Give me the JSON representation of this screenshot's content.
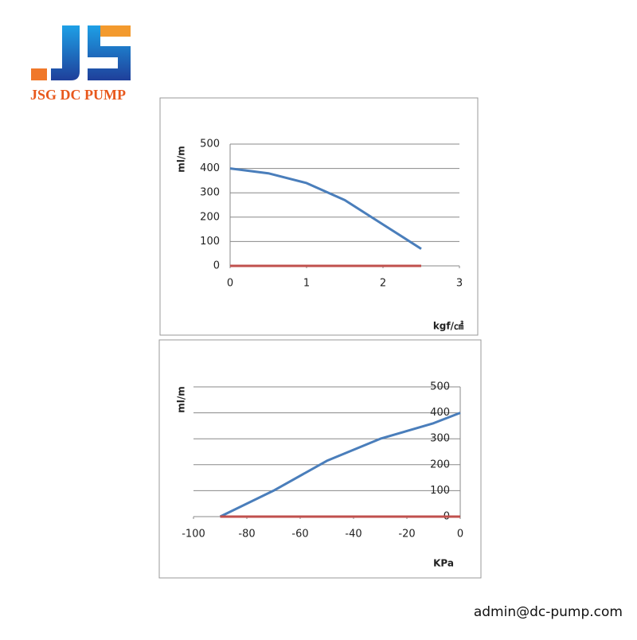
{
  "brand": "JSG DC PUMP",
  "contact": "admin@dc-pump.com",
  "chart_data": [
    {
      "type": "line",
      "ylabel": "ml/m",
      "xlabel": "kgf/㎠",
      "x": [
        0,
        0.5,
        1,
        1.5,
        2,
        2.5
      ],
      "series": [
        {
          "color": "#4a7ebb",
          "values": [
            400,
            380,
            340,
            270,
            170,
            70
          ]
        },
        {
          "color": "#c0504d",
          "values": [
            0,
            0,
            0,
            0,
            0,
            0
          ]
        }
      ],
      "xlim": [
        0,
        3
      ],
      "xticks": [
        0,
        1,
        2,
        3
      ],
      "ylim": [
        0,
        500
      ],
      "yticks": [
        0,
        100,
        200,
        300,
        400,
        500
      ],
      "grid": true
    },
    {
      "type": "line",
      "ylabel": "ml/m",
      "xlabel": "KPa",
      "x": [
        -90,
        -70,
        -50,
        -30,
        -10,
        0
      ],
      "series": [
        {
          "color": "#4a7ebb",
          "values": [
            0,
            100,
            215,
            300,
            360,
            400
          ]
        },
        {
          "color": "#c0504d",
          "values": [
            0,
            0,
            0,
            0,
            0,
            0
          ]
        }
      ],
      "xlim": [
        -100,
        0
      ],
      "xticks": [
        -100,
        -80,
        -60,
        -40,
        -20,
        0
      ],
      "ylim": [
        0,
        500
      ],
      "yticks": [
        0,
        100,
        200,
        300,
        400,
        500
      ],
      "grid": true
    }
  ]
}
